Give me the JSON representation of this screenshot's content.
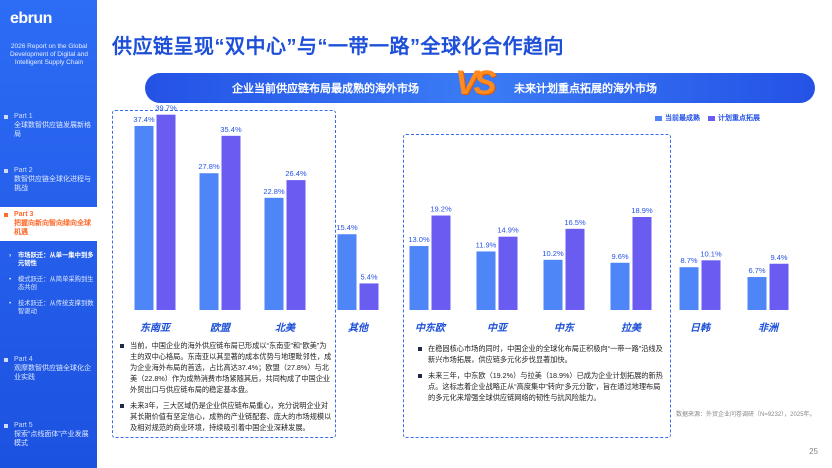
{
  "sidebar": {
    "logo": "ebrun",
    "report_title": "2026 Report on the Global Development of Digital and Intelligent Supply Chain",
    "parts": [
      {
        "part": "Part 1",
        "title": "全球数智供应链发展新格局"
      },
      {
        "part": "Part 2",
        "title": "数智供应链全球化进程与挑战"
      },
      {
        "part": "Part 3",
        "title": "把握向新向智向绿向全球机遇"
      },
      {
        "part": "Part 4",
        "title": "观摩数智供应链全球化企业实践"
      },
      {
        "part": "Part 5",
        "title": "探索“点线面体”产业发展模式"
      }
    ],
    "subnav": [
      "市场跃迁：从单一集中到多元韧性",
      "模式跃迁：从简单采购到生态共创",
      "技术跃迁：从传统支撑到数智驱动"
    ]
  },
  "page_title": "供应链呈现“双中心”与“一带一路”全球化合作趋向",
  "banner": {
    "left": "企业当前供应链布局最成熟的海外市场",
    "vs": "VS",
    "right": "未来计划重点拓展的海外市场"
  },
  "colors": {
    "current": "#4f86f7",
    "future": "#6a5cf0",
    "label": "#2452e6",
    "axis_label": "#1d4fd8"
  },
  "chart_data": {
    "type": "bar",
    "categories": [
      "东南亚",
      "欧盟",
      "北美",
      "其他",
      "中东欧",
      "中亚",
      "中东",
      "拉美",
      "日韩",
      "非洲"
    ],
    "series": [
      {
        "name": "当前最成熟",
        "values": [
          37.4,
          27.8,
          22.8,
          15.4,
          13.0,
          11.9,
          10.2,
          9.6,
          8.7,
          6.7
        ]
      },
      {
        "name": "计划重点拓展",
        "values": [
          39.7,
          35.4,
          26.4,
          5.4,
          19.2,
          14.9,
          16.5,
          18.9,
          10.1,
          9.4
        ]
      }
    ],
    "unit": "%",
    "legend_position": "top-right",
    "grid": false
  },
  "left_bullets": [
    "当前，中国企业的海外供应链布局已形成以“东南亚”和“欧美”为主的双中心格局。东南亚以其显著的成本优势与地理毗邻性，成为企业海外布局的首选，占比高达37.4%；欧盟（27.8%）与北美（22.8%）作为成熟消费市场紧随其后，共同构成了中国企业外贸出口与供应链布局的稳定基本盘。",
    "未来3年，三大区域仍是企业供应链布局重心，充分说明企业对其长期价值有坚定信心，成熟的产业链配套、庞大的市场规模以及相对规范的商业环境，持续吸引着中国企业深耕发展。"
  ],
  "right_bullets": [
    "在稳固核心市场的同时，中国企业的全球化布局正积极向“一带一路”沿线及新兴市场拓展，供应链多元化步伐显著加快。",
    "未来三年，中东欧（19.2%）与拉美（18.9%）已成为企业计划拓展的新热点。这标志着企业战略正从“高度集中”转向“多元分散”，旨在通过地理布局的多元化来增强全球供应链网络的韧性与抗风险能力。"
  ],
  "source": "数据来源：外贸企业问卷调研（N=9232），2025年。",
  "page_number": "25"
}
